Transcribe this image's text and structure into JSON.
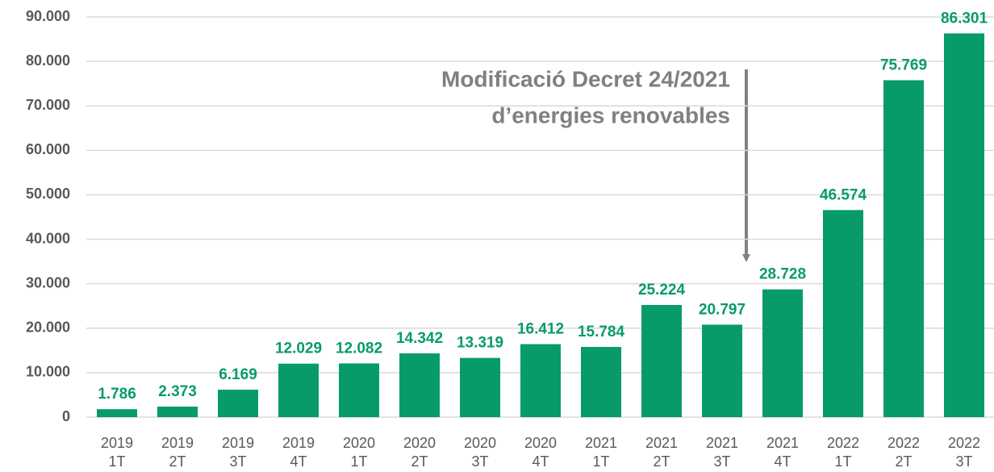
{
  "chart_data": {
    "type": "bar",
    "categories": [
      [
        "2019",
        "1T"
      ],
      [
        "2019",
        "2T"
      ],
      [
        "2019",
        "3T"
      ],
      [
        "2019",
        "4T"
      ],
      [
        "2020",
        "1T"
      ],
      [
        "2020",
        "2T"
      ],
      [
        "2020",
        "3T"
      ],
      [
        "2020",
        "4T"
      ],
      [
        "2021",
        "1T"
      ],
      [
        "2021",
        "2T"
      ],
      [
        "2021",
        "3T"
      ],
      [
        "2021",
        "4T"
      ],
      [
        "2022",
        "1T"
      ],
      [
        "2022",
        "2T"
      ],
      [
        "2022",
        "3T"
      ]
    ],
    "values": [
      1786,
      2373,
      6169,
      12029,
      12082,
      14342,
      13319,
      16412,
      15784,
      25224,
      20797,
      28728,
      46574,
      75769,
      86301
    ],
    "value_labels": [
      "1.786",
      "2.373",
      "6.169",
      "12.029",
      "12.082",
      "14.342",
      "13.319",
      "16.412",
      "15.784",
      "25.224",
      "20.797",
      "28.728",
      "46.574",
      "75.769",
      "86.301"
    ],
    "color": "#079b69",
    "ylim": [
      0,
      90000
    ],
    "yticks": [
      0,
      {
        "value": 10000,
        "label": "10.000"
      },
      {
        "value": 20000,
        "label": "20.000"
      },
      {
        "value": 30000,
        "label": "30.000"
      },
      {
        "value": 40000,
        "label": "40.000"
      },
      {
        "value": 50000,
        "label": "50.000"
      },
      {
        "value": 60000,
        "label": "60.000"
      },
      {
        "value": 70000,
        "label": "70.000"
      },
      {
        "value": 80000,
        "label": "80.000"
      },
      {
        "value": 90000,
        "label": "90.000"
      }
    ],
    "grid": true,
    "annotation": [
      "Modificació Decret 24/2021",
      "d’energies renovables"
    ]
  }
}
